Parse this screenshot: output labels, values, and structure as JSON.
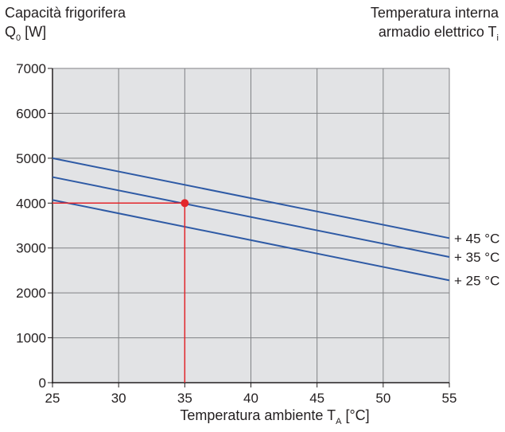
{
  "colors": {
    "plot_background": "#e2e3e5",
    "grid": "#808285",
    "axis": "#231f20",
    "series_line": "#2e5aa5",
    "highlight": "#e3262b"
  },
  "chart_data": {
    "type": "line",
    "title_left": {
      "main": "Capacità frigorifera",
      "line2": "Q",
      "line2_sub": "0",
      "line2_rest": " [W]"
    },
    "title_right": {
      "main": "Temperatura interna",
      "line2": "armadio elettrico T",
      "line2_sub": "i"
    },
    "xlabel": {
      "main": "Temperatura ambiente T",
      "sub": "A",
      "rest": " [°C]"
    },
    "xlim": [
      25,
      55
    ],
    "ylim": [
      0,
      7000
    ],
    "x_ticks": [
      25,
      30,
      35,
      40,
      45,
      50,
      55
    ],
    "y_ticks": [
      0,
      1000,
      2000,
      3000,
      4000,
      5000,
      6000,
      7000
    ],
    "grid": true,
    "series": [
      {
        "name": "+ 45 °C",
        "x": [
          25,
          55
        ],
        "y": [
          5000,
          3220
        ]
      },
      {
        "name": "+ 35 °C",
        "x": [
          25,
          55
        ],
        "y": [
          4580,
          2800
        ]
      },
      {
        "name": "+ 25 °C",
        "x": [
          25,
          55
        ],
        "y": [
          4070,
          2280
        ]
      }
    ],
    "highlight_point": {
      "x": 35,
      "y": 4000
    }
  }
}
